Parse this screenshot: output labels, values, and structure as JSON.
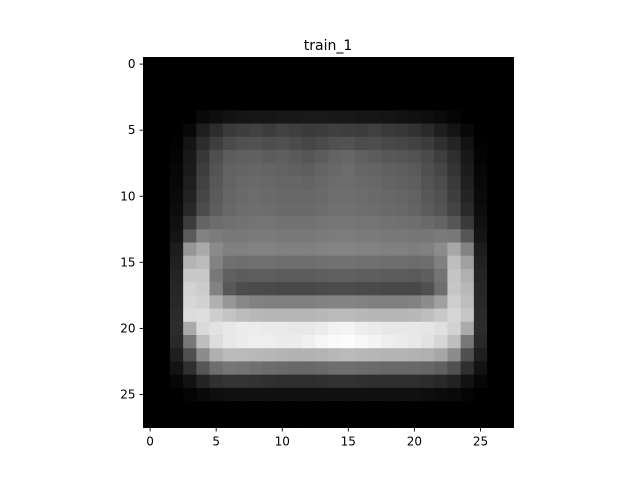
{
  "chart_data": {
    "type": "heatmap",
    "title": "train_1",
    "xlabel": "",
    "ylabel": "",
    "colormap": "gray",
    "value_range": [
      0,
      255
    ],
    "rows": 28,
    "cols": 28,
    "xlim": [
      -0.5,
      27.5
    ],
    "ylim": [
      27.5,
      -0.5
    ],
    "x_ticks": [
      0,
      5,
      10,
      15,
      20,
      25
    ],
    "y_ticks": [
      0,
      5,
      10,
      15,
      20,
      25
    ],
    "x_tick_labels": [
      "0",
      "5",
      "10",
      "15",
      "20",
      "25"
    ],
    "y_tick_labels": [
      "0",
      "5",
      "10",
      "15",
      "20",
      "25"
    ],
    "grid": false,
    "pixels": [
      [
        0,
        0,
        0,
        0,
        0,
        0,
        0,
        0,
        0,
        0,
        0,
        0,
        0,
        0,
        0,
        0,
        0,
        0,
        0,
        0,
        0,
        0,
        0,
        0,
        0,
        0,
        0,
        0
      ],
      [
        0,
        0,
        0,
        0,
        0,
        0,
        0,
        0,
        0,
        0,
        0,
        0,
        0,
        0,
        0,
        0,
        0,
        0,
        0,
        0,
        0,
        0,
        0,
        0,
        0,
        0,
        0,
        0
      ],
      [
        0,
        0,
        0,
        0,
        0,
        0,
        0,
        0,
        0,
        0,
        0,
        0,
        0,
        0,
        0,
        0,
        0,
        0,
        0,
        0,
        0,
        0,
        0,
        0,
        0,
        0,
        0,
        0
      ],
      [
        0,
        0,
        0,
        0,
        0,
        0,
        0,
        0,
        0,
        0,
        0,
        0,
        0,
        0,
        0,
        0,
        0,
        0,
        0,
        0,
        0,
        0,
        0,
        0,
        0,
        0,
        0,
        0
      ],
      [
        0,
        0,
        0,
        0,
        10,
        14,
        18,
        20,
        22,
        22,
        24,
        24,
        25,
        25,
        24,
        24,
        22,
        22,
        20,
        18,
        16,
        14,
        10,
        5,
        0,
        0,
        0,
        0
      ],
      [
        0,
        0,
        0,
        8,
        30,
        45,
        58,
        62,
        65,
        60,
        66,
        62,
        58,
        60,
        64,
        62,
        60,
        64,
        58,
        55,
        50,
        42,
        30,
        20,
        8,
        0,
        0,
        0
      ],
      [
        0,
        0,
        2,
        20,
        45,
        62,
        75,
        80,
        82,
        78,
        80,
        76,
        70,
        74,
        80,
        82,
        76,
        78,
        72,
        70,
        66,
        60,
        48,
        36,
        18,
        2,
        0,
        0
      ],
      [
        0,
        0,
        4,
        24,
        55,
        78,
        92,
        95,
        96,
        92,
        94,
        90,
        86,
        92,
        100,
        102,
        96,
        92,
        88,
        86,
        82,
        74,
        62,
        46,
        24,
        4,
        0,
        0
      ],
      [
        0,
        0,
        6,
        26,
        62,
        84,
        98,
        100,
        102,
        100,
        98,
        96,
        94,
        100,
        104,
        108,
        102,
        100,
        96,
        94,
        90,
        80,
        70,
        52,
        28,
        6,
        0,
        0
      ],
      [
        0,
        0,
        8,
        30,
        66,
        88,
        100,
        104,
        106,
        104,
        102,
        102,
        100,
        104,
        108,
        108,
        106,
        104,
        100,
        98,
        94,
        84,
        76,
        58,
        32,
        8,
        0,
        0
      ],
      [
        0,
        0,
        10,
        34,
        70,
        90,
        102,
        106,
        108,
        106,
        104,
        104,
        104,
        106,
        110,
        110,
        108,
        106,
        104,
        102,
        98,
        88,
        80,
        62,
        36,
        10,
        0,
        0
      ],
      [
        0,
        0,
        12,
        40,
        76,
        94,
        104,
        108,
        110,
        108,
        106,
        106,
        106,
        108,
        112,
        112,
        110,
        108,
        106,
        104,
        100,
        92,
        84,
        68,
        42,
        12,
        0,
        0
      ],
      [
        0,
        0,
        16,
        60,
        100,
        108,
        112,
        114,
        116,
        116,
        114,
        114,
        114,
        116,
        118,
        118,
        116,
        116,
        114,
        112,
        110,
        106,
        100,
        86,
        58,
        16,
        0,
        0
      ],
      [
        0,
        0,
        20,
        90,
        130,
        124,
        120,
        120,
        122,
        122,
        120,
        120,
        120,
        122,
        124,
        124,
        122,
        122,
        120,
        120,
        118,
        118,
        122,
        120,
        86,
        20,
        0,
        0
      ],
      [
        0,
        0,
        28,
        150,
        170,
        138,
        128,
        128,
        130,
        130,
        128,
        128,
        128,
        130,
        132,
        132,
        130,
        130,
        128,
        128,
        126,
        128,
        140,
        168,
        130,
        28,
        0,
        0
      ],
      [
        0,
        0,
        32,
        180,
        188,
        130,
        112,
        110,
        112,
        112,
        110,
        110,
        110,
        112,
        114,
        114,
        112,
        112,
        110,
        110,
        108,
        110,
        128,
        190,
        160,
        32,
        0,
        0
      ],
      [
        0,
        0,
        36,
        200,
        200,
        120,
        96,
        92,
        94,
        94,
        92,
        92,
        92,
        94,
        96,
        96,
        94,
        94,
        92,
        92,
        90,
        94,
        116,
        196,
        176,
        36,
        0,
        0
      ],
      [
        0,
        0,
        38,
        210,
        204,
        130,
        88,
        76,
        74,
        74,
        72,
        72,
        72,
        74,
        76,
        76,
        74,
        74,
        72,
        72,
        72,
        80,
        110,
        198,
        184,
        38,
        0,
        0
      ],
      [
        0,
        0,
        40,
        214,
        210,
        176,
        150,
        136,
        130,
        128,
        128,
        128,
        128,
        130,
        132,
        132,
        130,
        128,
        128,
        128,
        130,
        140,
        160,
        206,
        190,
        40,
        0,
        0
      ],
      [
        0,
        0,
        42,
        220,
        222,
        206,
        196,
        188,
        184,
        182,
        182,
        182,
        182,
        184,
        186,
        186,
        184,
        182,
        182,
        182,
        184,
        190,
        200,
        214,
        198,
        42,
        0,
        0
      ],
      [
        0,
        0,
        44,
        170,
        218,
        226,
        232,
        236,
        236,
        234,
        234,
        232,
        232,
        236,
        242,
        244,
        238,
        234,
        232,
        232,
        232,
        230,
        224,
        210,
        170,
        44,
        0,
        0
      ],
      [
        0,
        0,
        40,
        120,
        190,
        220,
        232,
        236,
        238,
        238,
        236,
        236,
        240,
        246,
        250,
        252,
        248,
        244,
        238,
        236,
        232,
        226,
        214,
        190,
        120,
        40,
        0,
        0
      ],
      [
        0,
        0,
        30,
        80,
        140,
        176,
        186,
        186,
        184,
        182,
        180,
        178,
        178,
        180,
        184,
        186,
        184,
        182,
        180,
        180,
        178,
        176,
        166,
        140,
        80,
        30,
        0,
        0
      ],
      [
        0,
        0,
        18,
        46,
        86,
        110,
        118,
        116,
        112,
        108,
        106,
        104,
        104,
        106,
        110,
        110,
        108,
        106,
        104,
        104,
        104,
        102,
        96,
        80,
        46,
        18,
        0,
        0
      ],
      [
        0,
        0,
        6,
        18,
        36,
        48,
        52,
        52,
        50,
        48,
        46,
        46,
        46,
        48,
        50,
        50,
        48,
        46,
        46,
        46,
        46,
        44,
        40,
        34,
        18,
        6,
        0,
        0
      ],
      [
        0,
        0,
        0,
        4,
        10,
        14,
        16,
        16,
        16,
        16,
        16,
        16,
        16,
        16,
        16,
        16,
        16,
        16,
        16,
        16,
        16,
        14,
        12,
        10,
        4,
        0,
        0,
        0
      ],
      [
        0,
        0,
        0,
        0,
        0,
        0,
        0,
        0,
        0,
        0,
        0,
        0,
        0,
        0,
        0,
        0,
        0,
        0,
        0,
        0,
        0,
        0,
        0,
        0,
        0,
        0,
        0,
        0
      ],
      [
        0,
        0,
        0,
        0,
        0,
        0,
        0,
        0,
        0,
        0,
        0,
        0,
        0,
        0,
        0,
        0,
        0,
        0,
        0,
        0,
        0,
        0,
        0,
        0,
        0,
        0,
        0,
        0
      ]
    ]
  }
}
